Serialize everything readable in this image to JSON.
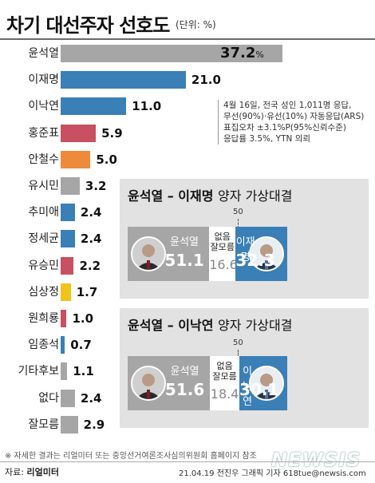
{
  "header": {
    "title": "차기 대선주자 선호도",
    "unit": "(단위: %)"
  },
  "colors": {
    "gray": "#a6a6a6",
    "blue": "#3a7fb6",
    "red": "#c85062",
    "orange": "#ee8a3c",
    "yellow": "#f1c318",
    "panel_bg": "#e2e2e2"
  },
  "chart_data": [
    {
      "type": "bar",
      "orientation": "horizontal",
      "title": "차기 대선주자 선호도",
      "unit": "%",
      "categories": [
        "윤석열",
        "이재명",
        "이낙연",
        "홍준표",
        "안철수",
        "유시민",
        "추미애",
        "정세균",
        "유승민",
        "심상정",
        "원희룡",
        "임종석",
        "기타후보",
        "없다",
        "잘모름"
      ],
      "values": [
        37.2,
        21.0,
        11.0,
        5.9,
        5.0,
        3.2,
        2.4,
        2.4,
        2.2,
        1.7,
        1.0,
        0.7,
        1.1,
        2.4,
        2.9
      ],
      "value_labels": [
        "37.2",
        "21.0",
        "11.0",
        "5.9",
        "5.0",
        "3.2",
        "2.4",
        "2.4",
        "2.2",
        "1.7",
        "1.0",
        "0.7",
        "1.1",
        "2.4",
        "2.9"
      ],
      "bar_colors": [
        "gray",
        "blue",
        "blue",
        "red",
        "orange",
        "gray",
        "blue",
        "blue",
        "red",
        "yellow",
        "red",
        "blue",
        "gray",
        "gray",
        "gray"
      ]
    },
    {
      "type": "bar",
      "orientation": "stacked-horizontal",
      "title": "윤석열 – 이재명 양자 가상대결",
      "reference_value": 50,
      "segments": [
        {
          "name": "윤석열",
          "value": 51.1,
          "label": "51.1",
          "color": "#a6a6a6"
        },
        {
          "name": "없음\n잘모름",
          "value": 16.6,
          "label": "16.6",
          "color": "#ffffff"
        },
        {
          "name": "이재명",
          "value": 32.3,
          "label": "32.3",
          "color": "#3a7fb6"
        }
      ]
    },
    {
      "type": "bar",
      "orientation": "stacked-horizontal",
      "title": "윤석열 – 이낙연 양자 가상대결",
      "reference_value": 50,
      "segments": [
        {
          "name": "윤석열",
          "value": 51.6,
          "label": "51.6",
          "color": "#a6a6a6"
        },
        {
          "name": "없음\n잘모름",
          "value": 18.4,
          "label": "18.4",
          "color": "#ffffff"
        },
        {
          "name": "이낙연",
          "value": 30.1,
          "label": "30.1",
          "color": "#3a7fb6"
        }
      ]
    }
  ],
  "panels": [
    {
      "title_main": "윤석열 – 이재명",
      "title_sub": "양자 가상대결",
      "fifty_label": "50"
    },
    {
      "title_main": "윤석열 – 이낙연",
      "title_sub": "양자 가상대결",
      "fifty_label": "50"
    }
  ],
  "notes": [
    "4월 16일, 전국 성인 1,011명 응답,",
    "무선(90%)·유선(10%) 자동응답(ARS)",
    "표집오차 ±3.1%P(95%신뢰수준)",
    "응답률 3.5%, YTN 의뢰"
  ],
  "pct_sign": "%",
  "source_note": "※ 자세한 결과는 리얼미터 또는 중앙선거여론조사심의위원회 홈페이지 참조",
  "footer": {
    "label": "자료:",
    "source": "리얼미터",
    "credit": "21.04.19 전진우 그래픽 기자 618tue@newsis.com"
  },
  "watermark": "NEWSIS"
}
